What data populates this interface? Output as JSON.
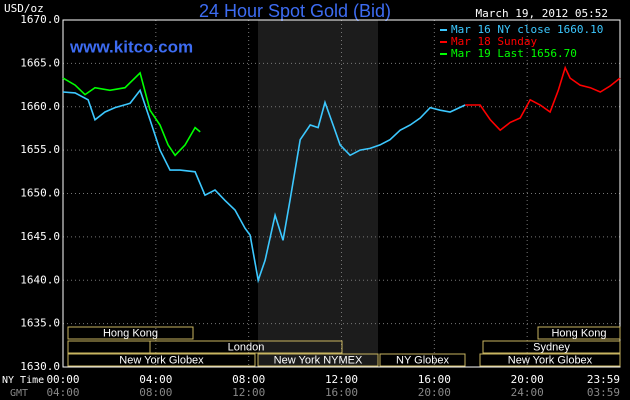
{
  "chart_data": {
    "type": "line",
    "title": "24 Hour Spot Gold (Bid)",
    "timestamp": "March 19, 2012 05:52",
    "site": "www.kitco.com",
    "y_label": "USD/oz",
    "x_row_label": "NY Time",
    "gmt_row_label": "GMT",
    "grid": true,
    "legend": "top-right",
    "xlim": [
      0,
      24
    ],
    "xticks": [
      {
        "value": 0,
        "label": "00:00"
      },
      {
        "value": 4,
        "label": "04:00"
      },
      {
        "value": 8,
        "label": "08:00"
      },
      {
        "value": 12,
        "label": "12:00"
      },
      {
        "value": 16,
        "label": "16:00"
      },
      {
        "value": 20,
        "label": "20:00"
      },
      {
        "value": 24,
        "label": "23:59"
      }
    ],
    "gmt_labels": [
      "04:00",
      "08:00",
      "12:00",
      "16:00",
      "20:00",
      "24:00",
      "03:59"
    ],
    "ylim": [
      1630,
      1670
    ],
    "yticks": [
      {
        "value": 1630,
        "label": "1630.0"
      },
      {
        "value": 1635,
        "label": "1635.0"
      },
      {
        "value": 1640,
        "label": "1640.0"
      },
      {
        "value": 1645,
        "label": "1645.0"
      },
      {
        "value": 1650,
        "label": "1650.0"
      },
      {
        "value": 1655,
        "label": "1655.0"
      },
      {
        "value": 1660,
        "label": "1660.0"
      },
      {
        "value": 1665,
        "label": "1665.0"
      },
      {
        "value": 1670,
        "label": "1670.0"
      }
    ],
    "sessions": [
      "Hong Kong",
      "London",
      "New York Globex",
      "New York NYMEX",
      "NY Globex",
      "Hong Kong",
      "Sydney",
      "New York Globex"
    ],
    "series": [
      {
        "name": "Mar 16 NY close 1660.10",
        "color": "#3cc8ff",
        "x": [
          0,
          0.52,
          1.08,
          1.38,
          1.81,
          2.24,
          2.89,
          3.32,
          3.75,
          4.18,
          4.61,
          5.04,
          5.69,
          6.12,
          6.55,
          6.98,
          7.41,
          7.84,
          8.06,
          8.41,
          8.71,
          9.14,
          9.48,
          9.78,
          10.22,
          10.65,
          10.99,
          11.29,
          11.64,
          11.94,
          12.37,
          12.8,
          13.23,
          13.66,
          14.09,
          14.53,
          14.96,
          15.39,
          15.82,
          16.25,
          16.68,
          17.33
        ],
        "values": [
          1661.7,
          1661.6,
          1660.8,
          1658.5,
          1659.4,
          1659.9,
          1660.4,
          1661.9,
          1658.5,
          1655.0,
          1652.7,
          1652.7,
          1652.5,
          1649.8,
          1650.4,
          1649.2,
          1648.1,
          1646.0,
          1645.2,
          1640.0,
          1642.3,
          1647.5,
          1644.6,
          1649.2,
          1656.2,
          1657.9,
          1657.6,
          1660.5,
          1657.9,
          1655.6,
          1654.4,
          1655.0,
          1655.2,
          1655.6,
          1656.2,
          1657.3,
          1657.9,
          1658.7,
          1659.9,
          1659.6,
          1659.4,
          1660.2
        ]
      },
      {
        "name": "Mar 18 Sunday",
        "color": "#ff0000",
        "x": [
          17.33,
          17.97,
          18.41,
          18.84,
          19.27,
          19.7,
          20.13,
          20.56,
          20.99,
          21.34,
          21.64,
          21.85,
          22.28,
          22.72,
          23.15,
          23.58,
          24.0
        ],
        "values": [
          1660.2,
          1660.2,
          1658.5,
          1657.3,
          1658.2,
          1658.7,
          1660.8,
          1660.2,
          1659.4,
          1661.9,
          1664.5,
          1663.3,
          1662.5,
          1662.2,
          1661.7,
          1662.4,
          1663.3
        ]
      },
      {
        "name": "Mar 19 Last 1656.70",
        "color": "#00ff00",
        "x": [
          0,
          0.52,
          0.95,
          1.38,
          2.02,
          2.67,
          3.32,
          3.75,
          4.18,
          4.53,
          4.83,
          5.26,
          5.69,
          5.91
        ],
        "values": [
          1663.3,
          1662.5,
          1661.4,
          1662.2,
          1661.9,
          1662.2,
          1663.9,
          1659.6,
          1657.9,
          1655.6,
          1654.4,
          1655.6,
          1657.6,
          1657.1
        ]
      }
    ]
  }
}
